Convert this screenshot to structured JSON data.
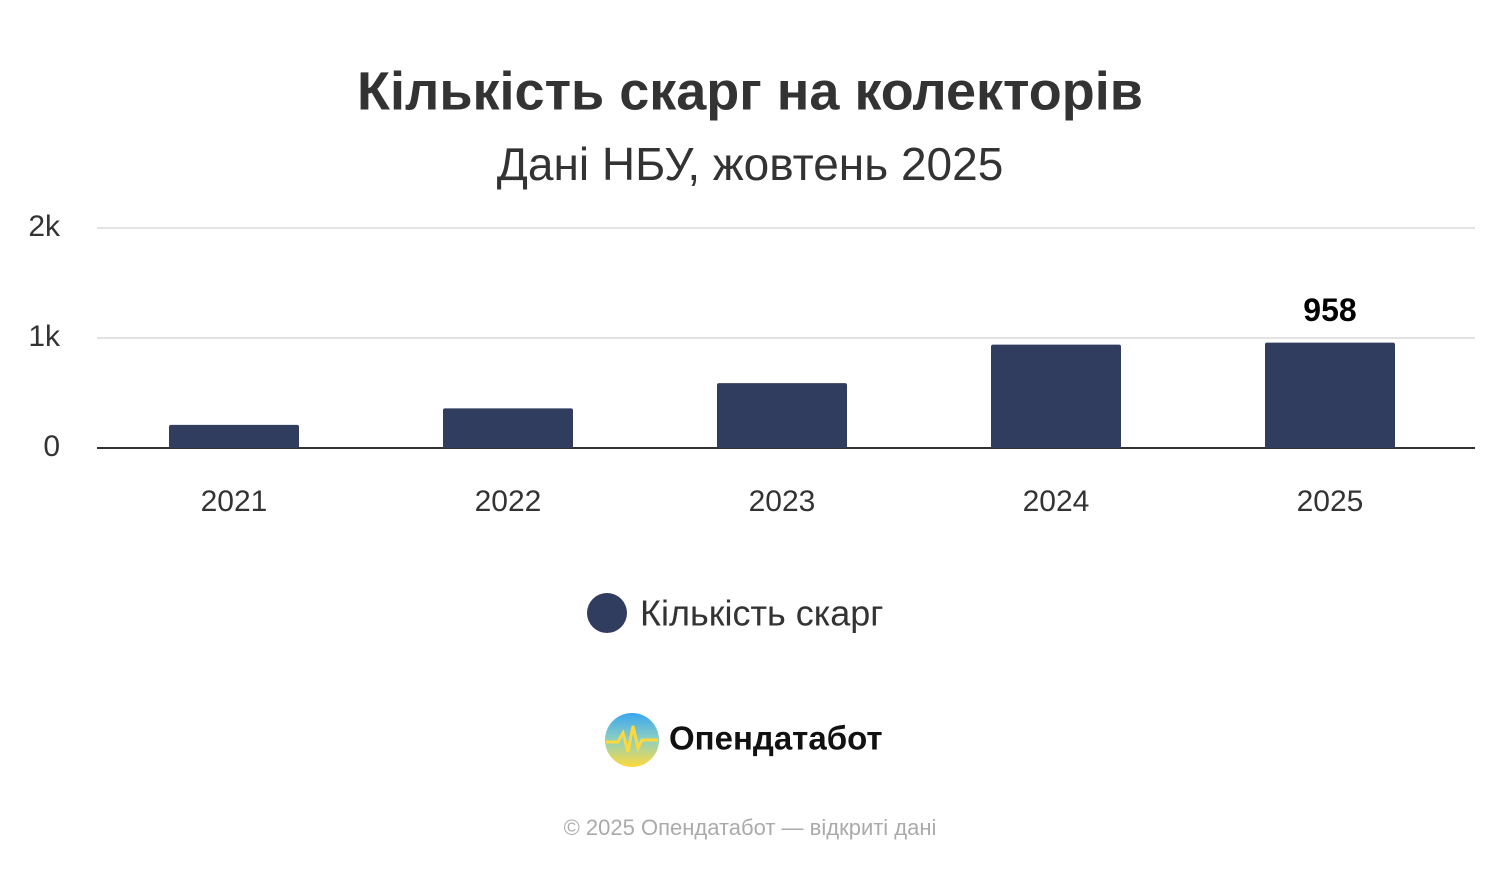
{
  "chart_data": {
    "type": "bar",
    "title": "Кількість скарг на колекторів",
    "subtitle": "Дані НБУ, жовтень 2025",
    "categories": [
      "2021",
      "2022",
      "2023",
      "2024",
      "2025"
    ],
    "series": [
      {
        "name": "Кількість скарг",
        "color": "#313d5e",
        "values": [
          210,
          360,
          590,
          940,
          958
        ]
      }
    ],
    "value_labels": [
      null,
      null,
      null,
      null,
      "958"
    ],
    "ylim": [
      0,
      2000
    ],
    "yticks": [
      0,
      {
        "value": 1000,
        "label": "1k"
      },
      {
        "value": 2000,
        "label": "2k"
      }
    ],
    "grid": true
  },
  "brand": "Опендатабот",
  "footer": "© 2025 Опендатабот — відкриті дані"
}
